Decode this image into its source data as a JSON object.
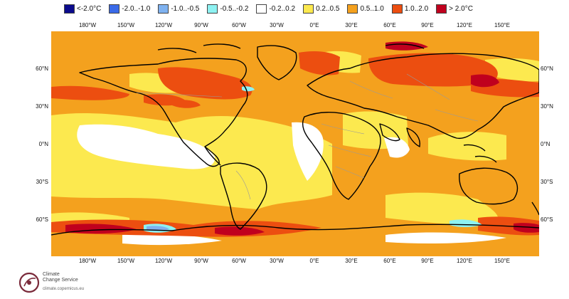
{
  "legend": [
    {
      "label": "<-2.0°C",
      "color": "#0a0a8c"
    },
    {
      "label": "-2.0..-1.0",
      "color": "#3a6ae8"
    },
    {
      "label": "-1.0..-0.5",
      "color": "#7fb2f0"
    },
    {
      "label": "-0.5..-0.2",
      "color": "#8ef2f2"
    },
    {
      "label": "-0.2..0.2",
      "color": "#ffffff"
    },
    {
      "label": "0.2..0.5",
      "color": "#fce94f"
    },
    {
      "label": "0.5..1.0",
      "color": "#f4a11e"
    },
    {
      "label": "1.0..2.0",
      "color": "#ec4e10"
    },
    {
      "label": "> 2.0°C",
      "color": "#c0001e"
    }
  ],
  "map": {
    "longitude_ticks": [
      "180°W",
      "150°W",
      "120°W",
      "90°W",
      "60°W",
      "30°W",
      "0°E",
      "30°E",
      "60°E",
      "90°E",
      "120°E",
      "150°E"
    ],
    "latitude_ticks": [
      "60°N",
      "30°N",
      "0°N",
      "30°S",
      "60°S"
    ],
    "background_color": "#f4a11e"
  },
  "logo": {
    "line1": "Climate",
    "line2": "Change Service",
    "url": "climate.copernicus.eu"
  }
}
